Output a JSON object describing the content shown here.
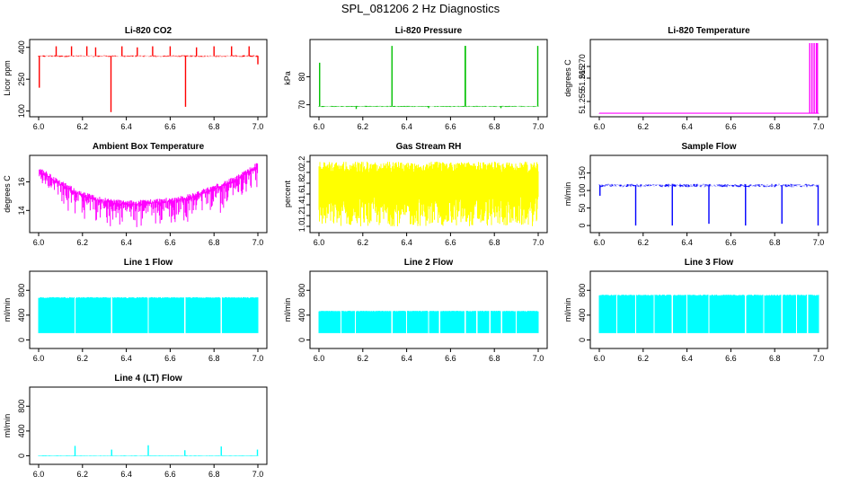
{
  "figure_title": "SPL_081206  2 Hz Diagnostics",
  "colors": {
    "red": "#ff0000",
    "green": "#00c000",
    "magenta": "#ff00ff",
    "yellow": "#ffff00",
    "blue": "#0000ff",
    "cyan": "#00ffff",
    "black": "#000000"
  },
  "chart_data": [
    {
      "id": "co2",
      "type": "line",
      "title": "Li-820 CO2",
      "ylabel": "Licor ppm",
      "color": "#ff0000",
      "xlim": [
        6.0,
        7.0
      ],
      "ylim": [
        90,
        420
      ],
      "x_ticks": [
        "6.0",
        "6.2",
        "6.4",
        "6.6",
        "6.8",
        "7.0"
      ],
      "y_ticks": [
        {
          "v": 100,
          "label": "100"
        },
        {
          "v": 250,
          "label": "250"
        },
        {
          "v": 400,
          "label": "400"
        }
      ],
      "baseline": 360,
      "noise": 6,
      "spikes": [
        [
          6.003,
          210
        ],
        [
          6.08,
          405
        ],
        [
          6.15,
          405
        ],
        [
          6.22,
          405
        ],
        [
          6.26,
          400
        ],
        [
          6.33,
          95
        ],
        [
          6.38,
          405
        ],
        [
          6.45,
          400
        ],
        [
          6.52,
          405
        ],
        [
          6.6,
          405
        ],
        [
          6.67,
          120
        ],
        [
          6.72,
          400
        ],
        [
          6.8,
          405
        ],
        [
          6.88,
          405
        ],
        [
          6.96,
          405
        ],
        [
          7.0,
          320
        ]
      ]
    },
    {
      "id": "pressure",
      "type": "line",
      "title": "Li-820 Pressure",
      "ylabel": "kPa",
      "color": "#00c000",
      "xlim": [
        6.0,
        7.0
      ],
      "ylim": [
        67,
        92
      ],
      "x_ticks": [
        "6.0",
        "6.2",
        "6.4",
        "6.6",
        "6.8",
        "7.0"
      ],
      "y_ticks": [
        {
          "v": 70,
          "label": "70"
        },
        {
          "v": 80,
          "label": "80"
        }
      ],
      "baseline": 69.5,
      "noise": 0.2,
      "spikes": [
        [
          6.003,
          85
        ],
        [
          6.333,
          91
        ],
        [
          6.667,
          91
        ],
        [
          6.668,
          91
        ],
        [
          6.998,
          91
        ],
        [
          6.17,
          68.5
        ],
        [
          6.5,
          68.8
        ],
        [
          6.83,
          68.8
        ]
      ]
    },
    {
      "id": "temperature",
      "type": "line",
      "title": "Li-820 Temperature",
      "ylabel": "degrees C",
      "color": "#ff00ff",
      "xlim": [
        6.0,
        7.0
      ],
      "ylim": [
        51.25,
        51.28
      ],
      "x_ticks": [
        "6.0",
        "6.2",
        "6.4",
        "6.6",
        "6.8",
        "7.0"
      ],
      "y_ticks": [
        {
          "v": 51.255,
          "label": "51.255"
        },
        {
          "v": 51.265,
          "label": "51.265"
        },
        {
          "v": 51.27,
          "label": "51.270"
        }
      ],
      "baseline": 51.25,
      "noise": 0,
      "spikes": [
        [
          6.96,
          51.28
        ],
        [
          6.97,
          51.28
        ],
        [
          6.98,
          51.28
        ],
        [
          6.99,
          51.28
        ],
        [
          6.995,
          51.28
        ]
      ]
    },
    {
      "id": "boxtemp",
      "type": "line",
      "title": "Ambient Box Temperature",
      "ylabel": "degrees C",
      "color": "#ff00ff",
      "xlim": [
        6.0,
        7.0
      ],
      "ylim": [
        12.7,
        17.6
      ],
      "x_ticks": [
        "6.0",
        "6.2",
        "6.4",
        "6.6",
        "6.8",
        "7.0"
      ],
      "y_ticks": [
        {
          "v": 14,
          "label": "14"
        },
        {
          "v": 16,
          "label": "16"
        }
      ],
      "curve": [
        [
          6.0,
          16.8
        ],
        [
          6.1,
          15.8
        ],
        [
          6.2,
          15.0
        ],
        [
          6.3,
          14.6
        ],
        [
          6.4,
          14.4
        ],
        [
          6.5,
          14.5
        ],
        [
          6.6,
          14.6
        ],
        [
          6.7,
          14.9
        ],
        [
          6.8,
          15.5
        ],
        [
          6.9,
          16.1
        ],
        [
          7.0,
          17.1
        ]
      ],
      "noise_up": 0.3,
      "noise_down": 1.2
    },
    {
      "id": "rh",
      "type": "line",
      "title": "Gas Stream RH",
      "ylabel": "percent",
      "color": "#ffff00",
      "xlim": [
        6.0,
        7.0
      ],
      "ylim": [
        0.95,
        2.25
      ],
      "x_ticks": [
        "6.0",
        "6.2",
        "6.4",
        "6.6",
        "6.8",
        "7.0"
      ],
      "y_ticks": [
        {
          "v": 1.0,
          "label": "1.0"
        },
        {
          "v": 1.2,
          "label": "1.2"
        },
        {
          "v": 1.4,
          "label": "1.4"
        },
        {
          "v": 1.6,
          "label": "1.6"
        },
        {
          "v": 1.8,
          "label": "1.8"
        },
        {
          "v": 2.0,
          "label": "2.0"
        },
        {
          "v": 2.2,
          "label": "2.2"
        }
      ],
      "band": [
        1.0,
        2.2
      ],
      "dense_center": [
        1.55,
        2.0
      ]
    },
    {
      "id": "sampleflow",
      "type": "line",
      "title": "Sample Flow",
      "ylabel": "ml/min",
      "color": "#0000ff",
      "xlim": [
        6.0,
        7.0
      ],
      "ylim": [
        -10,
        190
      ],
      "x_ticks": [
        "6.0",
        "6.2",
        "6.4",
        "6.6",
        "6.8",
        "7.0"
      ],
      "y_ticks": [
        {
          "v": 0,
          "label": "0"
        },
        {
          "v": 50,
          "label": "50"
        },
        {
          "v": 100,
          "label": "100"
        },
        {
          "v": 150,
          "label": "150"
        }
      ],
      "baseline": 115,
      "noise": 8,
      "spikes": [
        [
          6.003,
          85
        ],
        [
          6.166,
          0
        ],
        [
          6.333,
          0
        ],
        [
          6.5,
          5
        ],
        [
          6.667,
          0
        ],
        [
          6.833,
          5
        ],
        [
          6.998,
          0
        ]
      ]
    },
    {
      "id": "line1",
      "type": "line",
      "title": "Line 1 Flow",
      "ylabel": "ml/min",
      "color": "#00ffff",
      "xlim": [
        6.0,
        7.0
      ],
      "ylim": [
        -80,
        1050
      ],
      "x_ticks": [
        "6.0",
        "6.2",
        "6.4",
        "6.6",
        "6.8",
        "7.0"
      ],
      "y_ticks": [
        {
          "v": 0,
          "label": "0"
        },
        {
          "v": 400,
          "label": "400"
        },
        {
          "v": 800,
          "label": "800"
        }
      ],
      "band": [
        110,
        690
      ],
      "gaps": [
        6.166,
        6.333,
        6.5,
        6.667,
        6.833
      ]
    },
    {
      "id": "line2",
      "type": "line",
      "title": "Line 2 Flow",
      "ylabel": "ml/min",
      "color": "#00ffff",
      "xlim": [
        6.0,
        7.0
      ],
      "ylim": [
        -80,
        1050
      ],
      "x_ticks": [
        "6.0",
        "6.2",
        "6.4",
        "6.6",
        "6.8",
        "7.0"
      ],
      "y_ticks": [
        {
          "v": 0,
          "label": "0"
        },
        {
          "v": 400,
          "label": "400"
        },
        {
          "v": 800,
          "label": "800"
        }
      ],
      "band": [
        110,
        470
      ],
      "gaps": [
        6.1,
        6.166,
        6.333,
        6.4,
        6.5,
        6.55,
        6.667,
        6.72,
        6.78,
        6.833,
        6.9
      ]
    },
    {
      "id": "line3",
      "type": "line",
      "title": "Line 3 Flow",
      "ylabel": "ml/min",
      "color": "#00ffff",
      "xlim": [
        6.0,
        7.0
      ],
      "ylim": [
        -80,
        1050
      ],
      "x_ticks": [
        "6.0",
        "6.2",
        "6.4",
        "6.6",
        "6.8",
        "7.0"
      ],
      "y_ticks": [
        {
          "v": 0,
          "label": "0"
        },
        {
          "v": 400,
          "label": "400"
        },
        {
          "v": 800,
          "label": "800"
        }
      ],
      "band": [
        110,
        730
      ],
      "gaps": [
        6.08,
        6.166,
        6.25,
        6.333,
        6.4,
        6.5,
        6.667,
        6.75,
        6.833,
        6.9,
        6.95
      ]
    },
    {
      "id": "line4",
      "type": "line",
      "title": "Line 4 (LT) Flow",
      "ylabel": "ml/min",
      "color": "#00ffff",
      "xlim": [
        6.0,
        7.0
      ],
      "ylim": [
        -80,
        1050
      ],
      "x_ticks": [
        "6.0",
        "6.2",
        "6.4",
        "6.6",
        "6.8",
        "7.0"
      ],
      "y_ticks": [
        {
          "v": 0,
          "label": "0"
        },
        {
          "v": 400,
          "label": "400"
        },
        {
          "v": 800,
          "label": "800"
        }
      ],
      "baseline": 5,
      "noise": 5,
      "spikes": [
        [
          6.166,
          160
        ],
        [
          6.333,
          100
        ],
        [
          6.5,
          170
        ],
        [
          6.667,
          90
        ],
        [
          6.833,
          150
        ],
        [
          6.998,
          100
        ]
      ]
    }
  ]
}
